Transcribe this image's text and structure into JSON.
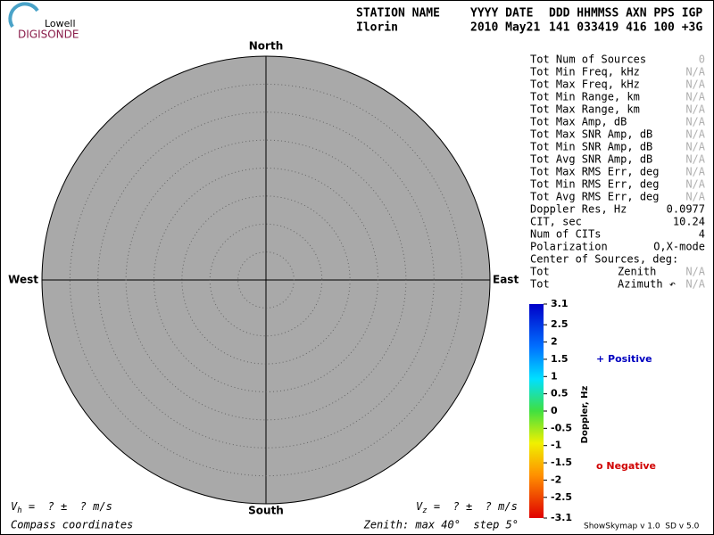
{
  "logo": {
    "top": "Lowell",
    "bottom": "DIGISONDE"
  },
  "header": {
    "columns": [
      "STATION NAME",
      "YYYY DATE",
      "DDD HHMMSS AXN PPS IGP"
    ],
    "values": [
      "Ilorin",
      "2010 May21",
      "141 033419 416 100 +3G"
    ]
  },
  "compass": {
    "north": "North",
    "south": "South",
    "east": "East",
    "west": "West"
  },
  "stats": [
    {
      "label": "Tot Num of Sources",
      "value": "0"
    },
    {
      "label": "Tot Min Freq, kHz",
      "value": "N/A"
    },
    {
      "label": "Tot Max Freq, kHz",
      "value": "N/A"
    },
    {
      "label": "Tot Min Range, km",
      "value": "N/A"
    },
    {
      "label": "Tot Max Range, km",
      "value": "N/A"
    },
    {
      "label": "Tot Max Amp, dB",
      "value": "N/A"
    },
    {
      "label": "Tot Max SNR Amp, dB",
      "value": "N/A"
    },
    {
      "label": "Tot Min SNR Amp, dB",
      "value": "N/A"
    },
    {
      "label": "Tot Avg SNR Amp, dB",
      "value": "N/A"
    },
    {
      "label": "Tot Max RMS Err, deg",
      "value": "N/A"
    },
    {
      "label": "Tot Min RMS Err, deg",
      "value": "N/A"
    },
    {
      "label": "Tot Avg RMS Err, deg",
      "value": "N/A"
    },
    {
      "label": "Doppler Res, Hz",
      "value": "0.0977"
    },
    {
      "label": "CIT, sec",
      "value": "10.24"
    },
    {
      "label": "Num of CITs",
      "value": "4"
    },
    {
      "label": "Polarization",
      "value": "O,X-mode"
    },
    {
      "label": "Center of Sources, deg:"
    },
    {
      "label": "Tot",
      "note": "Zenith",
      "value": "N/A"
    },
    {
      "label": "Tot",
      "note": "Azimuth ↶",
      "value": "N/A"
    }
  ],
  "colorbar": {
    "label": "Doppler, Hz",
    "ticks": [
      3.1,
      2.5,
      2,
      1.5,
      1,
      0.5,
      0,
      -0.5,
      -1,
      -1.5,
      -2,
      -2.5,
      -3.1
    ]
  },
  "legend": {
    "positive": "+ Positive",
    "negative": "o Negative"
  },
  "footer": {
    "vh": {
      "symbol": "V",
      "sub": "h",
      "text": " =  ? ±  ? m/s"
    },
    "vz": {
      "symbol": "V",
      "sub": "z",
      "text": " =  ? ±  ? m/s"
    },
    "coordinates": "Compass coordinates",
    "zenith": "Zenith: max 40°  step 5°",
    "version": "ShowSkymap v 1.0  SD v 5.0"
  }
}
